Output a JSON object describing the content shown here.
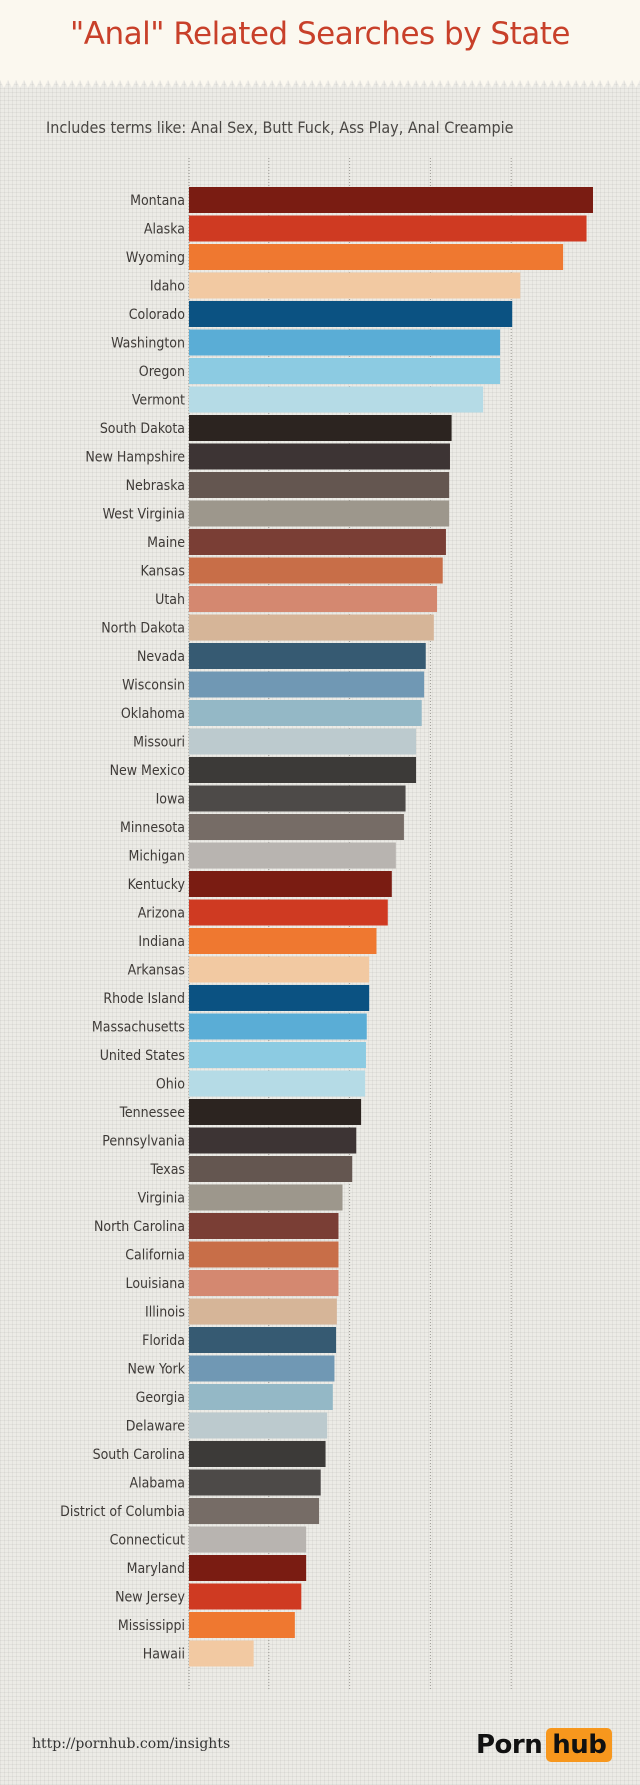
{
  "chart_data": {
    "type": "bar",
    "orientation": "horizontal",
    "title": "\"Anal\" Related Searches by State",
    "subtitle": "Includes terms like: Anal Sex, Butt Fuck, Ass Play, Anal Creampie",
    "xlabel": "",
    "ylabel": "",
    "xlim": [
      0,
      5
    ],
    "grid": true,
    "legend": "none",
    "categories": [
      "Montana",
      "Alaska",
      "Wyoming",
      "Idaho",
      "Colorado",
      "Washington",
      "Oregon",
      "Vermont",
      "South Dakota",
      "New Hampshire",
      "Nebraska",
      "West Virginia",
      "Maine",
      "Kansas",
      "Utah",
      "North Dakota",
      "Nevada",
      "Wisconsin",
      "Oklahoma",
      "Missouri",
      "New Mexico",
      "Iowa",
      "Minnesota",
      "Michigan",
      "Kentucky",
      "Arizona",
      "Indiana",
      "Arkansas",
      "Rhode Island",
      "Massachusetts",
      "United States",
      "Ohio",
      "Tennessee",
      "Pennsylvania",
      "Texas",
      "Virginia",
      "North Carolina",
      "California",
      "Louisiana",
      "Illinois",
      "Florida",
      "New York",
      "Georgia",
      "Delaware",
      "South Carolina",
      "Alabama",
      "District of Columbia",
      "Connecticut",
      "Maryland",
      "New Jersey",
      "Mississippi",
      "Hawaii"
    ],
    "values": [
      5.0,
      4.92,
      4.63,
      4.1,
      4.0,
      3.85,
      3.85,
      3.64,
      3.25,
      3.23,
      3.22,
      3.22,
      3.18,
      3.14,
      3.07,
      3.03,
      2.93,
      2.91,
      2.88,
      2.81,
      2.81,
      2.68,
      2.66,
      2.56,
      2.51,
      2.46,
      2.32,
      2.23,
      2.23,
      2.2,
      2.19,
      2.18,
      2.13,
      2.07,
      2.02,
      1.9,
      1.85,
      1.85,
      1.85,
      1.83,
      1.82,
      1.8,
      1.78,
      1.71,
      1.69,
      1.63,
      1.61,
      1.45,
      1.45,
      1.39,
      1.31,
      0.8
    ],
    "palette": [
      "#7a1c12",
      "#cf3a22",
      "#ef7830",
      "#f2c9a2",
      "#0b5282",
      "#5aadd6",
      "#8ccbe2",
      "#b5dbe6",
      "#2c2420",
      "#3d3434",
      "#645650",
      "#9d978c",
      "#7a3e35",
      "#c86e48",
      "#d48870",
      "#d6b598",
      "#365a72",
      "#7098b4",
      "#94b8c6",
      "#bccace",
      "#3c3a38",
      "#4d4a48",
      "#766c66",
      "#b8b4b0"
    ]
  },
  "footer": {
    "url": "http://pornhub.com/insights",
    "logo_left": "Porn",
    "logo_right": "hub"
  }
}
